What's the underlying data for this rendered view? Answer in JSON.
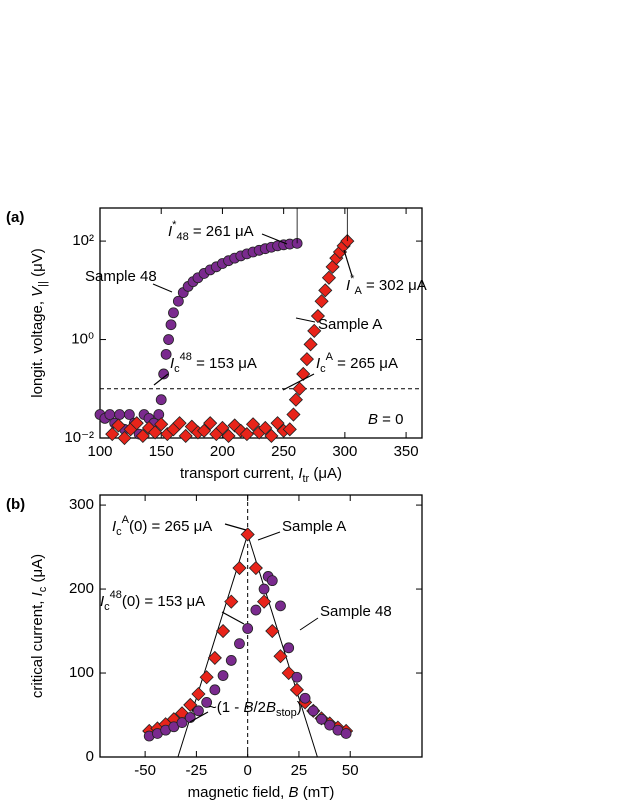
{
  "chart_data": [
    {
      "type": "scatter",
      "panel_label": "(a)",
      "yscale": "log",
      "xlabel": [
        {
          "text": "transport current, "
        },
        {
          "text": "I",
          "style": "italic"
        },
        {
          "text": "tr",
          "style": "sub"
        },
        {
          "text": " (μA)"
        }
      ],
      "ylabel": [
        {
          "text": "longit. voltage, "
        },
        {
          "text": "V",
          "style": "italic"
        },
        {
          "text": "||",
          "style": "sub"
        },
        {
          "text": " (μV)"
        }
      ],
      "xlim": [
        100,
        363
      ],
      "xticks": [
        100,
        150,
        200,
        250,
        300,
        350
      ],
      "ylim": [
        0.01,
        470
      ],
      "yticks": [
        {
          "value": 0.01,
          "label": "10⁻²"
        },
        {
          "value": 1,
          "label": "10⁰"
        },
        {
          "value": 100,
          "label": "10²"
        }
      ],
      "hline": 0.1,
      "series": [
        {
          "name": "Sample 48",
          "marker": "circle",
          "color": "#7a2a8e",
          "x": [
            100,
            104,
            108,
            112,
            116,
            120,
            124,
            128,
            132,
            136,
            140,
            144,
            148,
            150,
            152,
            154,
            156,
            158,
            160,
            164,
            168,
            172,
            176,
            180,
            185,
            190,
            195,
            200,
            205,
            210,
            215,
            220,
            225,
            230,
            235,
            240,
            245,
            250,
            255,
            261
          ],
          "values": [
            0.03,
            0.025,
            0.03,
            0.02,
            0.03,
            0.015,
            0.03,
            0.02,
            0.012,
            0.03,
            0.025,
            0.02,
            0.03,
            0.06,
            0.2,
            0.5,
            1,
            2,
            3.5,
            6,
            9,
            12,
            15,
            18,
            22,
            26,
            30,
            35,
            40,
            45,
            50,
            55,
            60,
            65,
            70,
            75,
            80,
            84,
            87,
            90
          ]
        },
        {
          "name": "Sample A",
          "marker": "diamond",
          "color": "#e8241a",
          "x": [
            110,
            115,
            120,
            125,
            130,
            135,
            140,
            145,
            150,
            155,
            160,
            165,
            170,
            175,
            180,
            185,
            190,
            195,
            200,
            205,
            210,
            215,
            220,
            225,
            230,
            235,
            240,
            245,
            250,
            255,
            258,
            260,
            263,
            266,
            269,
            272,
            275,
            278,
            281,
            284,
            287,
            290,
            293,
            296,
            299,
            302
          ],
          "values": [
            0.012,
            0.018,
            0.01,
            0.015,
            0.02,
            0.011,
            0.016,
            0.013,
            0.019,
            0.012,
            0.015,
            0.02,
            0.011,
            0.017,
            0.013,
            0.014,
            0.02,
            0.012,
            0.016,
            0.011,
            0.018,
            0.014,
            0.012,
            0.019,
            0.013,
            0.016,
            0.011,
            0.02,
            0.014,
            0.015,
            0.03,
            0.06,
            0.1,
            0.2,
            0.4,
            0.8,
            1.5,
            3,
            6,
            10,
            18,
            30,
            45,
            60,
            80,
            100
          ]
        }
      ],
      "annotations": [
        [
          {
            "text": "I",
            "style": "italic"
          },
          {
            "text": "*",
            "style": "sup"
          },
          {
            "text": "48",
            "style": "sub"
          },
          {
            "text": " = 261 μA"
          }
        ],
        [
          {
            "text": "I",
            "style": "italic"
          },
          {
            "text": "*",
            "style": "sup"
          },
          {
            "text": "A",
            "style": "sub"
          },
          {
            "text": " = 302 μA"
          }
        ],
        [
          {
            "text": "I",
            "style": "italic"
          },
          {
            "text": "c",
            "style": "sub"
          },
          {
            "text": "48",
            "style": "sup"
          },
          {
            "text": " = 153 μA"
          }
        ],
        [
          {
            "text": "I",
            "style": "italic"
          },
          {
            "text": "c",
            "style": "sub"
          },
          {
            "text": "A",
            "style": "sup"
          },
          {
            "text": " = 265 μA"
          }
        ],
        [
          {
            "text": "B",
            "style": "italic"
          },
          {
            "text": " = 0"
          }
        ]
      ]
    },
    {
      "type": "scatter",
      "panel_label": "(b)",
      "yscale": "linear",
      "xlabel": [
        {
          "text": "magnetic field, "
        },
        {
          "text": "B",
          "style": "italic"
        },
        {
          "text": " (mT)"
        }
      ],
      "ylabel": [
        {
          "text": "critical current, "
        },
        {
          "text": "I",
          "style": "italic"
        },
        {
          "text": "c",
          "style": "sub"
        },
        {
          "text": " (μA)"
        }
      ],
      "xlim": [
        -72,
        85
      ],
      "xticks": [
        -50,
        -25,
        0,
        25,
        50
      ],
      "ylim": [
        0,
        312
      ],
      "yticks": [
        0,
        100,
        200,
        300
      ],
      "vline": 0,
      "tangent_lines": [
        {
          "x": [
            -34,
            0
          ],
          "y": [
            0,
            265
          ]
        },
        {
          "x": [
            0,
            34
          ],
          "y": [
            265,
            0
          ]
        }
      ],
      "series": [
        {
          "name": "Sample A",
          "marker": "diamond",
          "color": "#e8241a",
          "x": [
            -48,
            -44,
            -40,
            -36,
            -32,
            -28,
            -24,
            -20,
            -16,
            -12,
            -8,
            -4,
            0,
            4,
            8,
            12,
            16,
            20,
            24,
            28,
            32,
            36,
            40,
            44,
            48
          ],
          "values": [
            31,
            34,
            39,
            45,
            52,
            62,
            75,
            95,
            118,
            150,
            185,
            225,
            265,
            225,
            185,
            150,
            120,
            100,
            80,
            65,
            55,
            46,
            40,
            35,
            31
          ]
        },
        {
          "name": "Sample 48",
          "marker": "circle",
          "color": "#7a2a8e",
          "x": [
            -48,
            -44,
            -40,
            -36,
            -32,
            -28,
            -24,
            -20,
            -16,
            -12,
            -8,
            -4,
            0,
            4,
            8,
            10,
            12,
            16,
            20,
            24,
            28,
            32,
            36,
            40,
            44,
            48
          ],
          "values": [
            25,
            28,
            32,
            36,
            41,
            47,
            55,
            65,
            80,
            97,
            115,
            135,
            153,
            175,
            200,
            215,
            210,
            180,
            130,
            95,
            70,
            55,
            45,
            38,
            32,
            28
          ]
        }
      ],
      "annotations": [
        [
          {
            "text": "I",
            "style": "italic"
          },
          {
            "text": "c",
            "style": "sub"
          },
          {
            "text": "A",
            "style": "sup"
          },
          {
            "text": "(0) = 265 μA"
          }
        ],
        [
          {
            "text": "I",
            "style": "italic"
          },
          {
            "text": "c",
            "style": "sub"
          },
          {
            "text": "48",
            "style": "sup"
          },
          {
            "text": "(0) = 153 μA"
          }
        ],
        [
          {
            "text": "~(1 - "
          },
          {
            "text": "B",
            "style": "italic"
          },
          {
            "text": "/2"
          },
          {
            "text": "B",
            "style": "italic"
          },
          {
            "text": "stop",
            "style": "sub"
          },
          {
            "text": ")"
          }
        ]
      ]
    }
  ]
}
